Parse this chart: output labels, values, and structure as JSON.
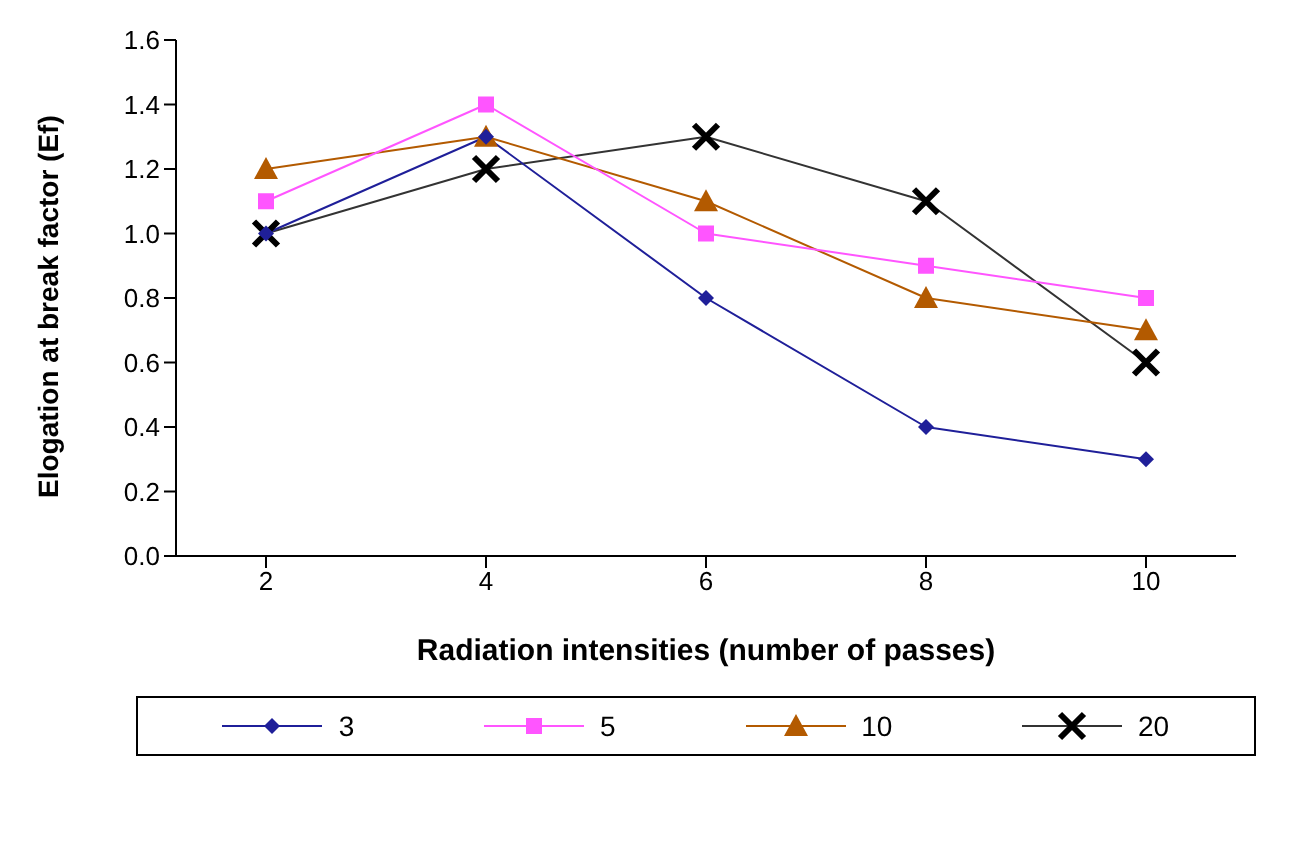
{
  "chart_data": {
    "type": "line",
    "xlabel": "Radiation intensities (number of passes)",
    "ylabel": "Elogation at break factor (Ef)",
    "categories": [
      "2",
      "4",
      "6",
      "8",
      "10"
    ],
    "series": [
      {
        "name": "3",
        "color": "#1f1f99",
        "marker": "diamond",
        "values": [
          1.0,
          1.3,
          0.8,
          0.4,
          0.3
        ]
      },
      {
        "name": "5",
        "color": "#ff55ff",
        "marker": "square",
        "values": [
          1.1,
          1.4,
          1.0,
          0.9,
          0.8
        ]
      },
      {
        "name": "10",
        "color": "#b35a00",
        "marker": "triangle",
        "values": [
          1.2,
          1.3,
          1.1,
          0.8,
          0.7
        ]
      },
      {
        "name": "20",
        "color": "#333333",
        "marker": "cross",
        "values": [
          1.0,
          1.2,
          1.3,
          1.1,
          0.6
        ]
      }
    ],
    "ylim": [
      0,
      1.6
    ],
    "yticks": [
      {
        "value": 0,
        "label": "0.0"
      },
      {
        "value": 0.2,
        "label": "0.2"
      },
      {
        "value": 0.4,
        "label": "0.4"
      },
      {
        "value": 0.6,
        "label": "0.6"
      },
      {
        "value": 0.8,
        "label": "0.8"
      },
      {
        "value": 1.0,
        "label": "1.0"
      },
      {
        "value": 1.2,
        "label": "1.2"
      },
      {
        "value": 1.4,
        "label": "1.4"
      },
      {
        "value": 1.6,
        "label": "1.6"
      }
    ],
    "grid": false,
    "legend": "bottom"
  }
}
